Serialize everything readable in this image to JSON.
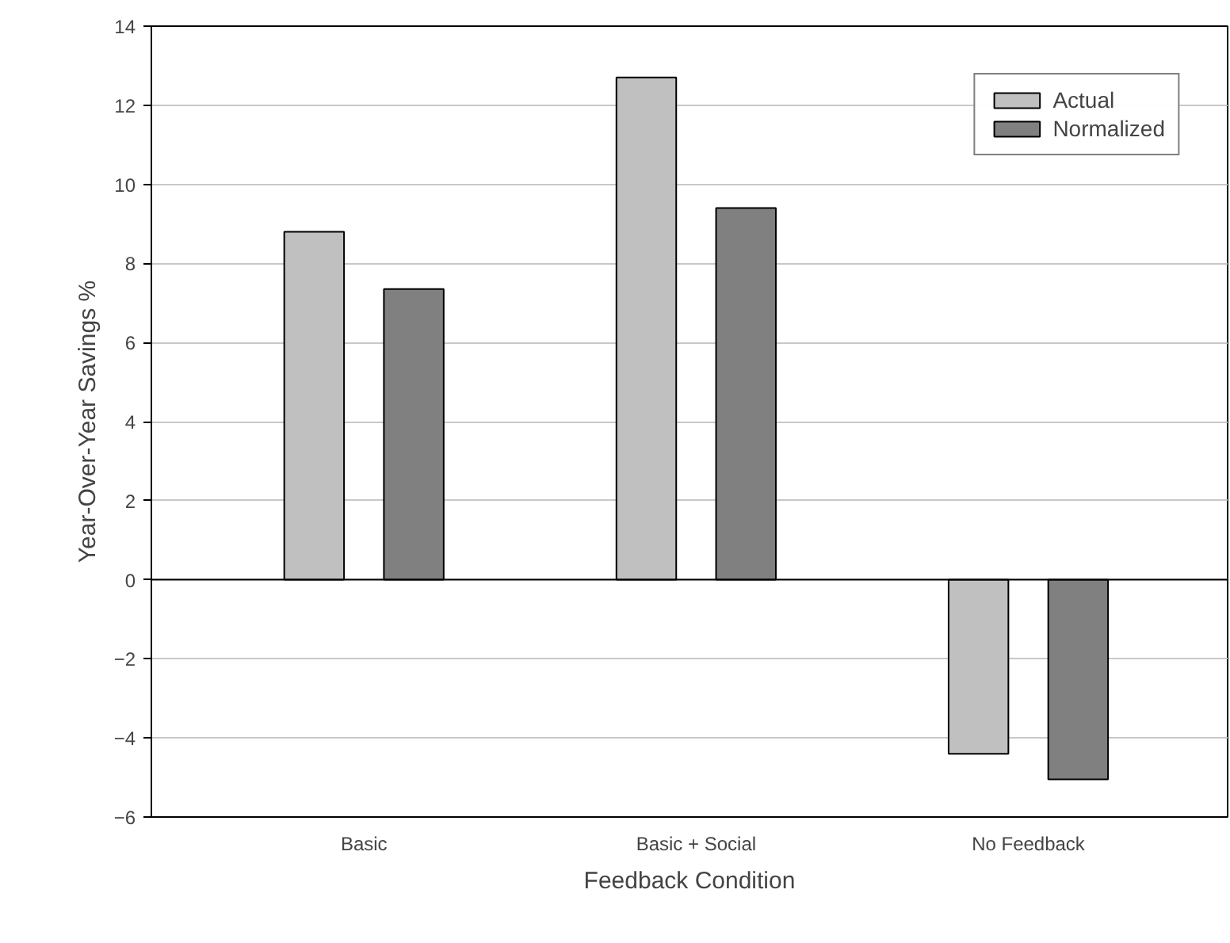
{
  "chart_data": {
    "type": "bar",
    "xlabel": "Feedback Condition",
    "ylabel": "Year-Over-Year Savings %",
    "categories": [
      "Basic",
      "Basic + Social",
      "No Feedback"
    ],
    "series": [
      {
        "name": "Actual",
        "color": "#c0c0c0",
        "values": [
          8.8,
          12.7,
          -4.4
        ]
      },
      {
        "name": "Normalized",
        "color": "#808080",
        "values": [
          7.35,
          9.4,
          -5.05
        ]
      }
    ],
    "ylim": [
      -6,
      14
    ],
    "yticks": [
      -6,
      -4,
      -2,
      0,
      2,
      4,
      6,
      8,
      10,
      12,
      14
    ],
    "grid": "y",
    "legend": "top right",
    "ref_lines": [
      {
        "axis": "y",
        "value": 0,
        "color": "#000000"
      }
    ]
  }
}
